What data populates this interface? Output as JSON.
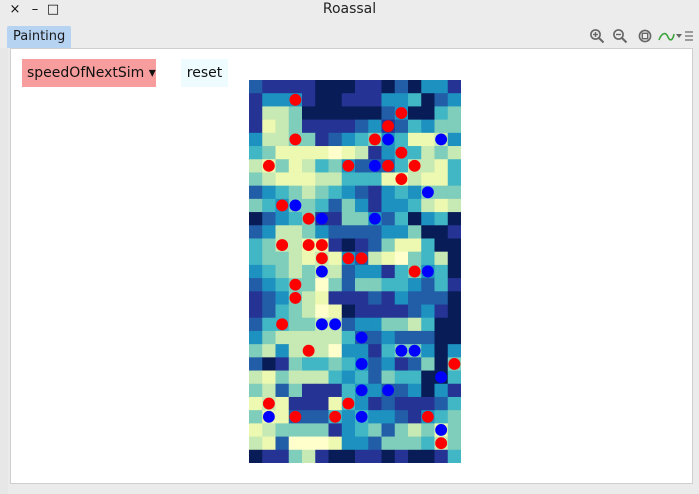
{
  "window": {
    "title": "Roassal",
    "close_glyph": "×",
    "minimize_glyph": "–",
    "maximize_glyph": "□"
  },
  "tabs": [
    {
      "label": "Painting"
    }
  ],
  "toolbar": {
    "icons": [
      "zoom-in-icon",
      "zoom-out-icon",
      "zoom-fit-icon",
      "export-menu-icon"
    ]
  },
  "controls": {
    "sim_button_label": "speedOfNextSim ▾",
    "reset_button_label": "reset"
  },
  "grid": {
    "cols": 16,
    "rows": 29,
    "palette": [
      "#ffffcc",
      "#edf8b1",
      "#c7e9b4",
      "#7fcdbb",
      "#41b6c4",
      "#1d91c0",
      "#225ea8",
      "#253494",
      "#081d58"
    ],
    "cells": [
      "6777788877868557",
      "7555788777554865",
      "7223888888658843",
      "7123777765764533",
      "5223376543541125",
      "4311110127544232",
      "2131243566642214",
      "3211122444112114",
      "6543234567545333",
      "3453346357554212",
      "8654377335648548",
      "6522356666553887",
      "4322117876311488",
      "4332121562103428",
      "5432322655743548",
      "6543303633445647",
      "7653217776756668",
      "7643201877776578",
      "6443322655332488",
      "5322222466566688",
      "3252220557433585",
      "6873443456576383",
      "2132224546344884",
      "3263777455665857",
      "1217771457677764",
      "3116664545567543",
      "1233337543632313",
      "2160001556333423",
      "8773278877878874"
    ],
    "agents": [
      {
        "col": 3,
        "row": 1,
        "color": "red"
      },
      {
        "col": 11,
        "row": 2,
        "color": "red"
      },
      {
        "col": 10,
        "row": 3,
        "color": "red"
      },
      {
        "col": 3,
        "row": 4,
        "color": "red"
      },
      {
        "col": 9,
        "row": 4,
        "color": "red"
      },
      {
        "col": 10,
        "row": 4,
        "color": "blue"
      },
      {
        "col": 14,
        "row": 4,
        "color": "blue"
      },
      {
        "col": 11,
        "row": 5,
        "color": "red"
      },
      {
        "col": 1,
        "row": 6,
        "color": "red"
      },
      {
        "col": 7,
        "row": 6,
        "color": "red"
      },
      {
        "col": 9,
        "row": 6,
        "color": "blue"
      },
      {
        "col": 10,
        "row": 6,
        "color": "red"
      },
      {
        "col": 12,
        "row": 6,
        "color": "red"
      },
      {
        "col": 11,
        "row": 7,
        "color": "red"
      },
      {
        "col": 13,
        "row": 8,
        "color": "blue"
      },
      {
        "col": 2,
        "row": 9,
        "color": "red"
      },
      {
        "col": 3,
        "row": 9,
        "color": "blue"
      },
      {
        "col": 4,
        "row": 10,
        "color": "red"
      },
      {
        "col": 5,
        "row": 10,
        "color": "blue"
      },
      {
        "col": 9,
        "row": 10,
        "color": "blue"
      },
      {
        "col": 2,
        "row": 12,
        "color": "red"
      },
      {
        "col": 4,
        "row": 12,
        "color": "red"
      },
      {
        "col": 5,
        "row": 12,
        "color": "red"
      },
      {
        "col": 5,
        "row": 13,
        "color": "red"
      },
      {
        "col": 7,
        "row": 13,
        "color": "red"
      },
      {
        "col": 8,
        "row": 13,
        "color": "red"
      },
      {
        "col": 5,
        "row": 14,
        "color": "blue"
      },
      {
        "col": 12,
        "row": 14,
        "color": "red"
      },
      {
        "col": 13,
        "row": 14,
        "color": "blue"
      },
      {
        "col": 3,
        "row": 15,
        "color": "red"
      },
      {
        "col": 3,
        "row": 16,
        "color": "red"
      },
      {
        "col": 2,
        "row": 18,
        "color": "red"
      },
      {
        "col": 5,
        "row": 18,
        "color": "blue"
      },
      {
        "col": 6,
        "row": 18,
        "color": "blue"
      },
      {
        "col": 8,
        "row": 19,
        "color": "blue"
      },
      {
        "col": 4,
        "row": 20,
        "color": "red"
      },
      {
        "col": 11,
        "row": 20,
        "color": "blue"
      },
      {
        "col": 12,
        "row": 20,
        "color": "blue"
      },
      {
        "col": 8,
        "row": 21,
        "color": "blue"
      },
      {
        "col": 15,
        "row": 21,
        "color": "red"
      },
      {
        "col": 14,
        "row": 22,
        "color": "blue"
      },
      {
        "col": 8,
        "row": 23,
        "color": "blue"
      },
      {
        "col": 10,
        "row": 23,
        "color": "blue"
      },
      {
        "col": 1,
        "row": 24,
        "color": "red"
      },
      {
        "col": 7,
        "row": 24,
        "color": "red"
      },
      {
        "col": 1,
        "row": 25,
        "color": "blue"
      },
      {
        "col": 3,
        "row": 25,
        "color": "red"
      },
      {
        "col": 6,
        "row": 25,
        "color": "red"
      },
      {
        "col": 8,
        "row": 25,
        "color": "blue"
      },
      {
        "col": 13,
        "row": 25,
        "color": "red"
      },
      {
        "col": 14,
        "row": 26,
        "color": "blue"
      },
      {
        "col": 14,
        "row": 27,
        "color": "red"
      }
    ],
    "agent_colors": {
      "red": "#ff0000",
      "blue": "#0000ff"
    }
  }
}
